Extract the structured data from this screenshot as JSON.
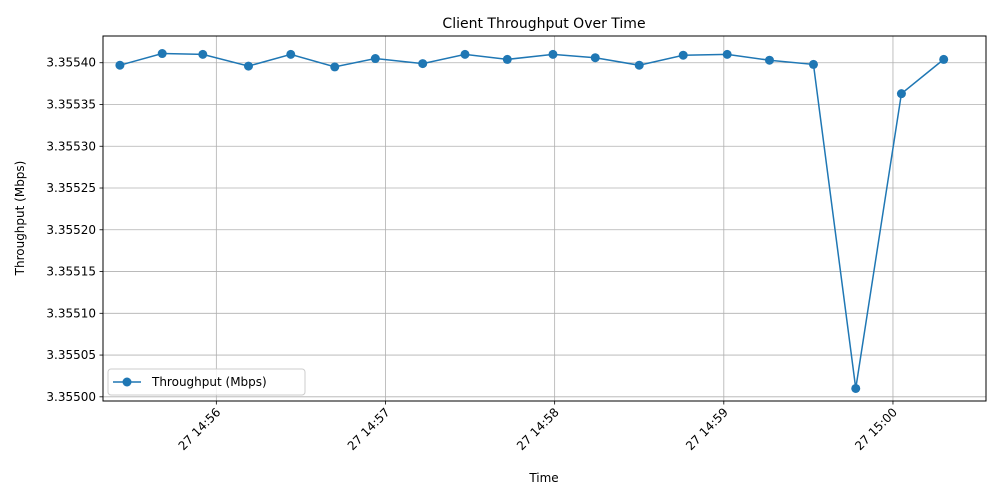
{
  "chart_data": {
    "type": "line",
    "title": "Client Throughput Over Time",
    "xlabel": "Time",
    "ylabel": "Throughput (Mbps)",
    "ylim": [
      3.354995,
      3.355432
    ],
    "xlim_minutes": [
      55.33,
      60.55
    ],
    "grid": true,
    "legend_position": "lower-left",
    "series_color": "#1f77b4",
    "x_ticks": [
      {
        "value": 56,
        "label": "27 14:56"
      },
      {
        "value": 57,
        "label": "27 14:57"
      },
      {
        "value": 58,
        "label": "27 14:58"
      },
      {
        "value": 59,
        "label": "27 14:59"
      },
      {
        "value": 60,
        "label": "27 15:00"
      }
    ],
    "y_ticks": [
      {
        "value": 3.355,
        "label": "3.35500"
      },
      {
        "value": 3.35505,
        "label": "3.35505"
      },
      {
        "value": 3.3551,
        "label": "3.35510"
      },
      {
        "value": 3.35515,
        "label": "3.35515"
      },
      {
        "value": 3.3552,
        "label": "3.35520"
      },
      {
        "value": 3.35525,
        "label": "3.35525"
      },
      {
        "value": 3.3553,
        "label": "3.35530"
      },
      {
        "value": 3.35535,
        "label": "3.35535"
      },
      {
        "value": 3.3554,
        "label": "3.35540"
      }
    ],
    "series": [
      {
        "name": "Throughput (Mbps)",
        "x": [
          55.43,
          55.68,
          55.92,
          56.19,
          56.44,
          56.7,
          56.94,
          57.22,
          57.47,
          57.72,
          57.99,
          58.24,
          58.5,
          58.76,
          59.02,
          59.27,
          59.53,
          59.78,
          60.05,
          60.3
        ],
        "values": [
          3.355397,
          3.355411,
          3.35541,
          3.355396,
          3.35541,
          3.355395,
          3.355405,
          3.355399,
          3.35541,
          3.355404,
          3.35541,
          3.355406,
          3.355397,
          3.355409,
          3.35541,
          3.355403,
          3.355398,
          3.35501,
          3.355363,
          3.355404
        ]
      }
    ]
  }
}
